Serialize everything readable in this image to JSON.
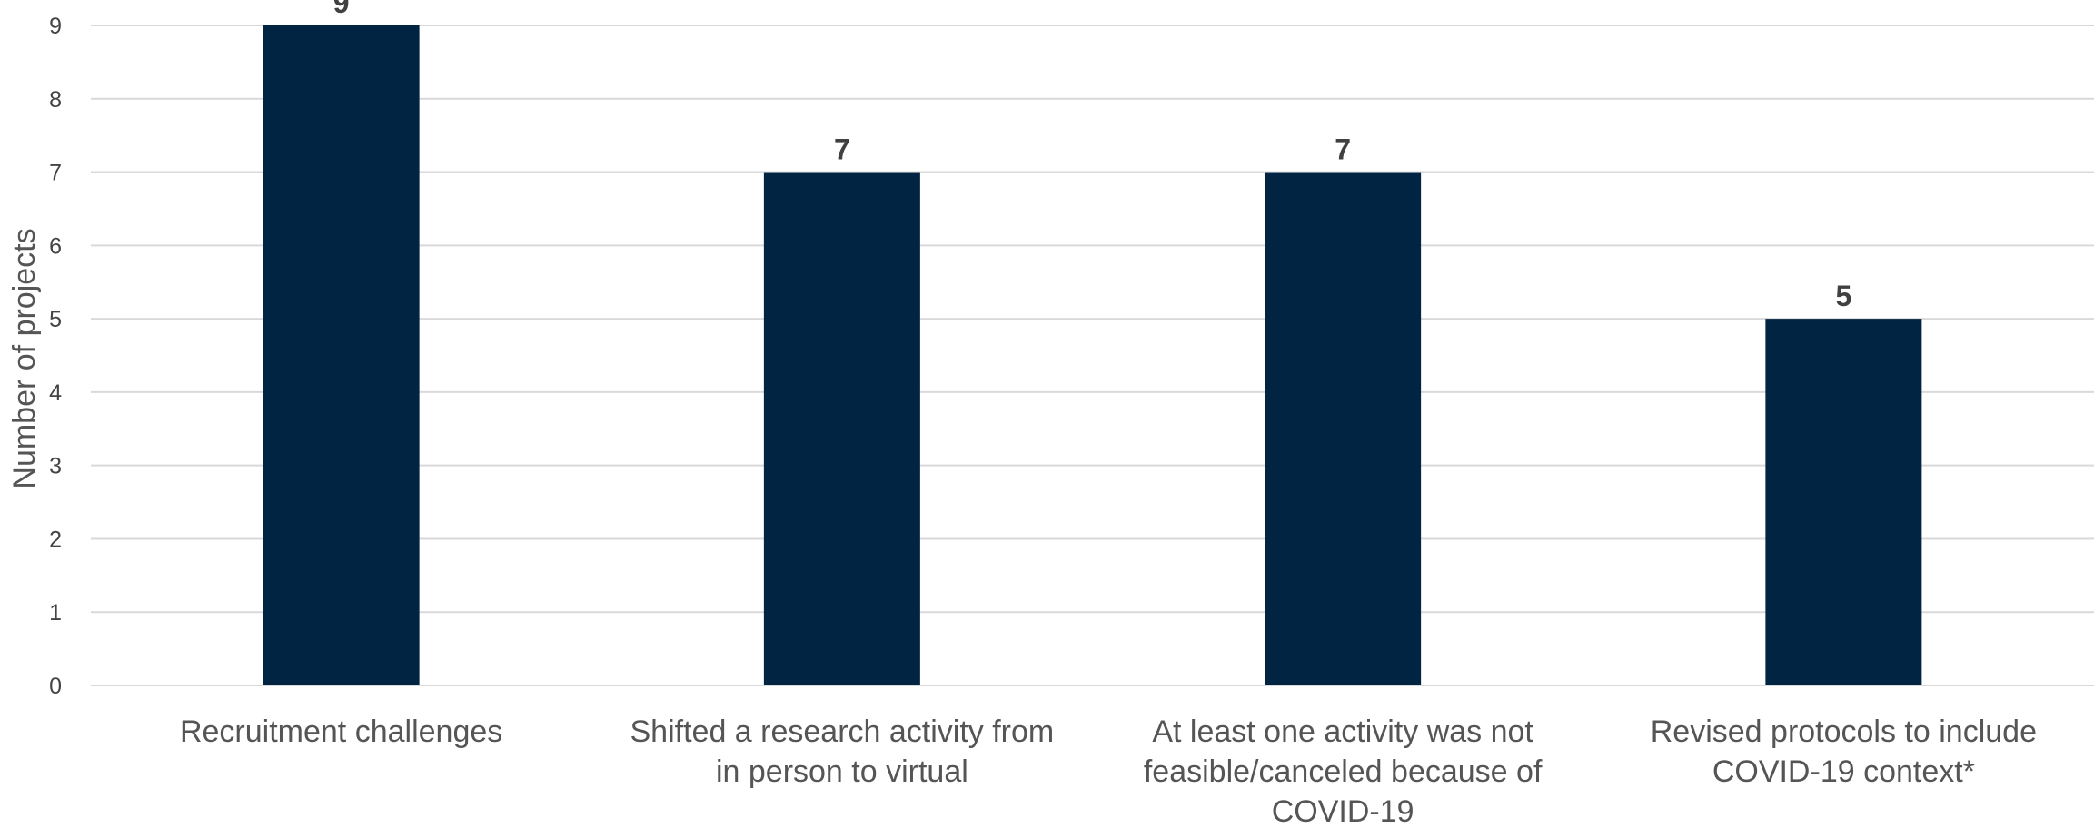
{
  "chart_data": {
    "type": "bar",
    "categories": [
      [
        "Recruitment challenges"
      ],
      [
        "Shifted a research activity from",
        "in person to virtual"
      ],
      [
        "At least one activity was not",
        "feasible/canceled because of",
        "COVID-19"
      ],
      [
        "Revised protocols to include",
        "COVID-19 context*"
      ]
    ],
    "values": [
      9,
      7,
      7,
      5
    ],
    "data_labels": [
      "9",
      "7",
      "7",
      "5"
    ],
    "ylabel": "Number of projects",
    "ylim": [
      0,
      9
    ],
    "yticks": [
      0,
      1,
      2,
      3,
      4,
      5,
      6,
      7,
      8,
      9
    ],
    "grid": true,
    "bar_color": "#022443",
    "grid_color": "#d9d9d9"
  }
}
